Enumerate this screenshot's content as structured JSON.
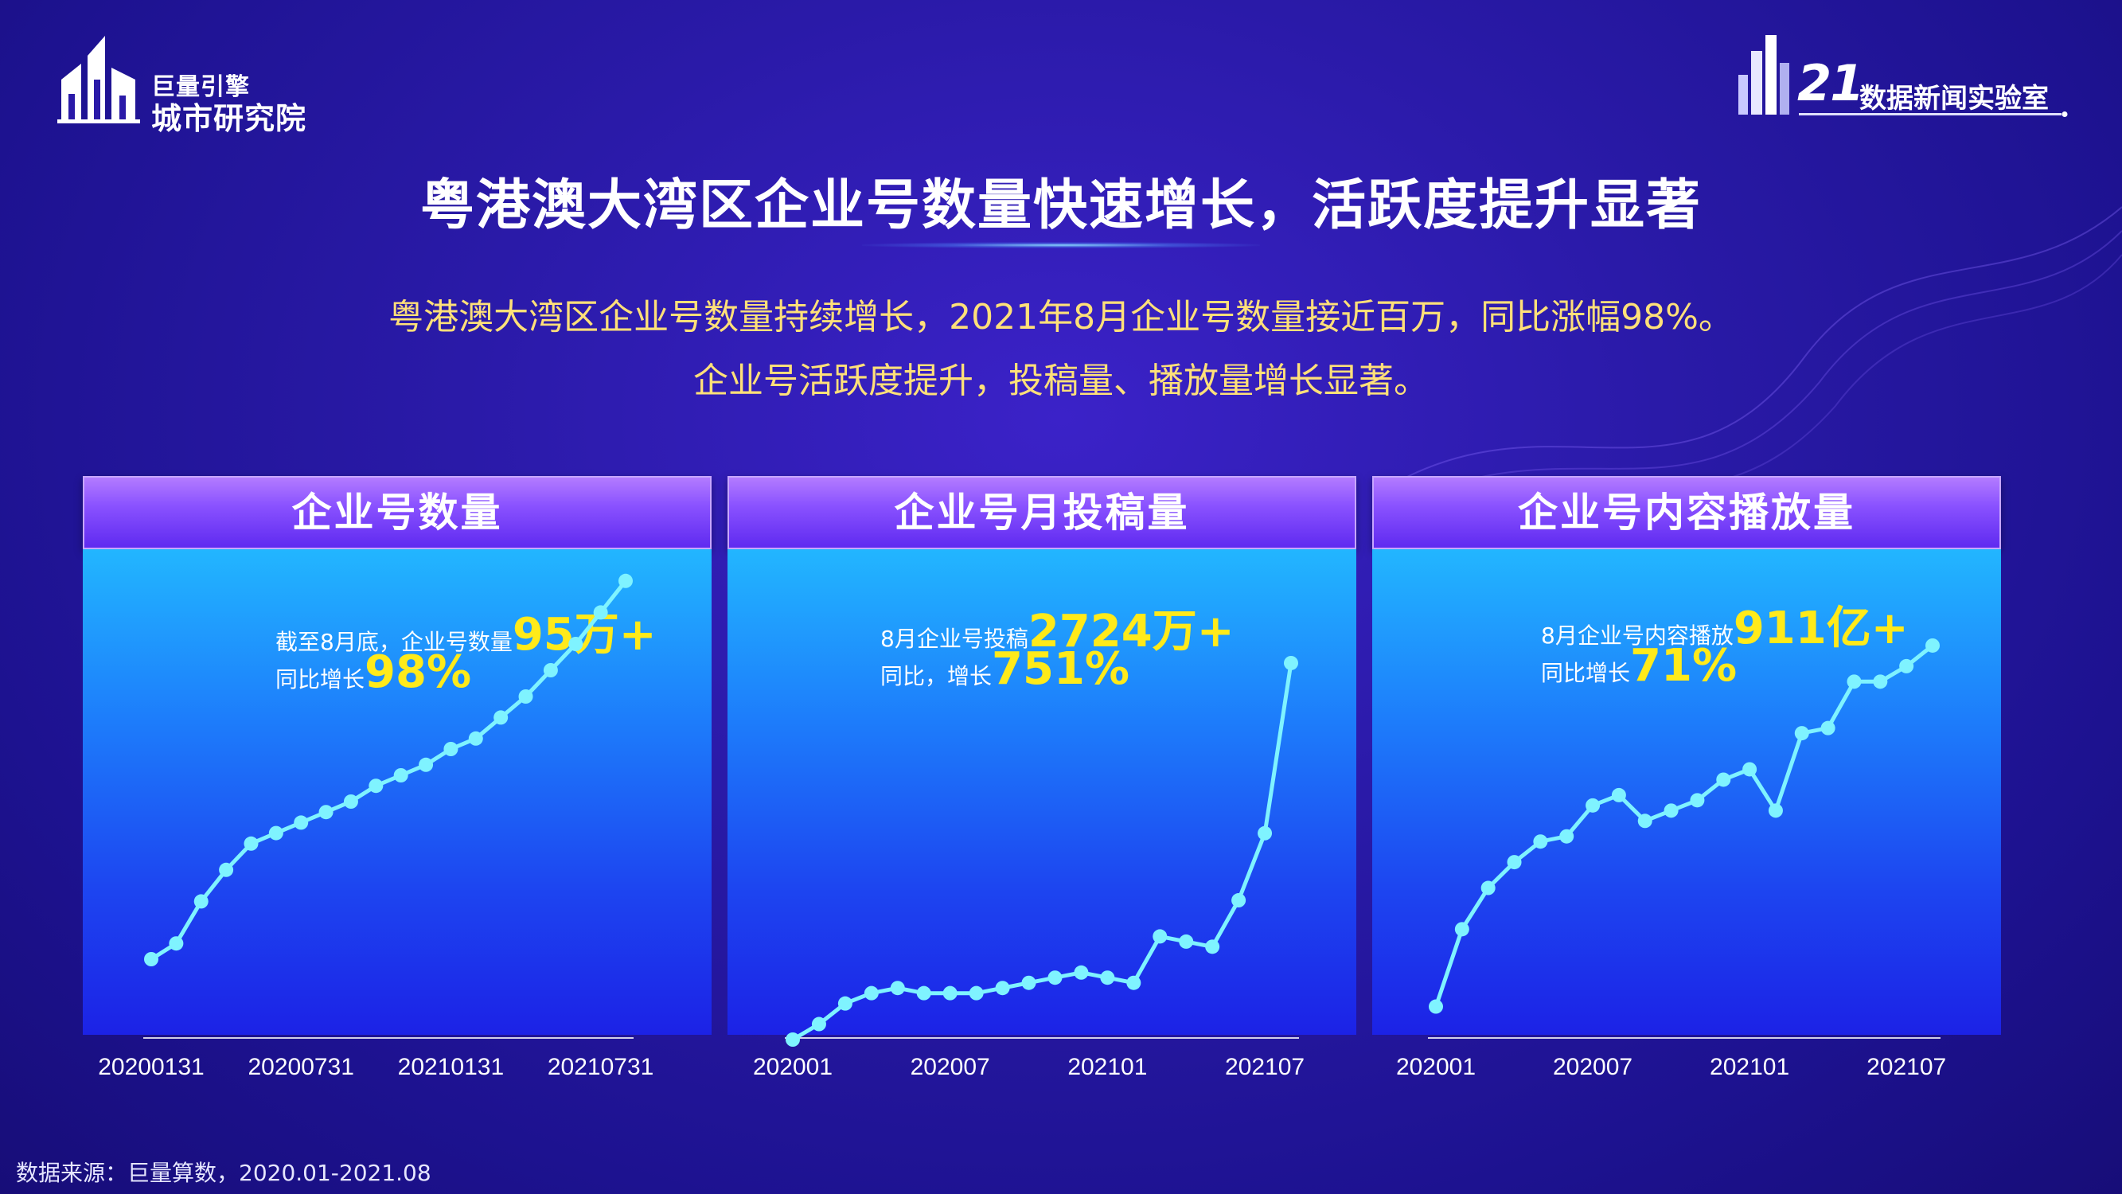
{
  "colors": {
    "accent": "#ffe079",
    "highlight": "#ffea1a",
    "line": "#7ff3ff"
  },
  "logo_left": {
    "line1": "巨量引擎",
    "line2": "城市研究院",
    "icon": "city-building-icon"
  },
  "logo_right": {
    "num": "21",
    "text": "数据新闻实验室",
    "icon": "bar-building-icon"
  },
  "title": "粤港澳大湾区企业号数量快速增长，活跃度提升显著",
  "subtitle_lines": [
    "粤港澳大湾区企业号数量持续增长，2021年8月企业号数量接近百万，同比涨幅98%。",
    "企业号活跃度提升，投稿量、播放量增长显著。"
  ],
  "panels": [
    {
      "header": "企业号数量",
      "annot_line1_prefix": "截至8月底，企业号数量",
      "annot_line1_big": "95万+",
      "annot_line2_prefix": "同比增长",
      "annot_line2_big": "98%"
    },
    {
      "header": "企业号月投稿量",
      "annot_line1_prefix": "8月企业号投稿",
      "annot_line1_big": "2724万+",
      "annot_line2_prefix": "同比，增长",
      "annot_line2_big": "751%"
    },
    {
      "header": "企业号内容播放量",
      "annot_line1_prefix": "8月企业号内容播放",
      "annot_line1_big": "911亿+",
      "annot_line2_prefix": "同比增长",
      "annot_line2_big": "71%"
    }
  ],
  "chart_data": [
    {
      "type": "line",
      "title": "企业号数量",
      "x": [
        "20200131",
        "20200229",
        "20200331",
        "20200430",
        "20200531",
        "20200630",
        "20200731",
        "20200831",
        "20200930",
        "20201031",
        "20201130",
        "20201231",
        "20210131",
        "20210228",
        "20210331",
        "20210430",
        "20210531",
        "20210630",
        "20210731",
        "20210831"
      ],
      "xticks": [
        "20200131",
        "20200731",
        "20210131",
        "20210731"
      ],
      "values": [
        5,
        8,
        16,
        22,
        27,
        29,
        31,
        33,
        35,
        38,
        40,
        42,
        45,
        47,
        51,
        55,
        60,
        65,
        71,
        77
      ],
      "ylim": [
        0,
        100
      ],
      "grid": false
    },
    {
      "type": "line",
      "title": "企业号月投稿量",
      "x": [
        "202001",
        "202002",
        "202003",
        "202004",
        "202005",
        "202006",
        "202007",
        "202008",
        "202009",
        "202010",
        "202011",
        "202012",
        "202101",
        "202102",
        "202103",
        "202104",
        "202105",
        "202106",
        "202107",
        "202108"
      ],
      "xticks": [
        "202001",
        "202007",
        "202101",
        "202107"
      ],
      "values": [
        0,
        3,
        7,
        9,
        10,
        9,
        9,
        9,
        10,
        11,
        12,
        13,
        12,
        11,
        20,
        19,
        18,
        27,
        40,
        73
      ],
      "ylim": [
        0,
        100
      ],
      "grid": false
    },
    {
      "type": "line",
      "title": "企业号内容播放量",
      "x": [
        "202001",
        "202002",
        "202003",
        "202004",
        "202005",
        "202006",
        "202007",
        "202008",
        "202009",
        "202010",
        "202011",
        "202012",
        "202101",
        "202102",
        "202103",
        "202104",
        "202105",
        "202106",
        "202107",
        "202108"
      ],
      "xticks": [
        "202001",
        "202007",
        "202101",
        "202107"
      ],
      "values": [
        3,
        18,
        26,
        31,
        35,
        36,
        42,
        44,
        39,
        41,
        43,
        47,
        49,
        41,
        56,
        57,
        66,
        66,
        69,
        73
      ],
      "ylim": [
        0,
        100
      ],
      "grid": false
    }
  ],
  "footer": "数据来源：巨量算数，2020.01-2021.08"
}
